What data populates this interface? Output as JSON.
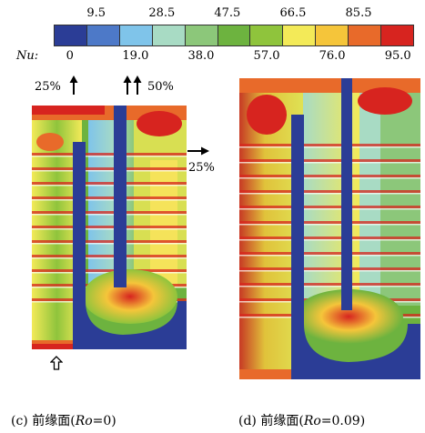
{
  "colorbar": {
    "segment_colors": [
      "#2b3d96",
      "#4d79c8",
      "#7fc4ea",
      "#a8dbc4",
      "#8cc77a",
      "#6db33f",
      "#8fc43c",
      "#f3ea58",
      "#f5c53a",
      "#e86a2a",
      "#d7241f"
    ],
    "top_ticks": [
      "9.5",
      "28.5",
      "47.5",
      "66.5",
      "85.5"
    ],
    "bottom_label": "Nu:",
    "bottom_ticks": [
      "0",
      "19.0",
      "38.0",
      "57.0",
      "76.0",
      "95.0"
    ]
  },
  "annotations": {
    "inlet_left": "25%",
    "inlet_mid": "50%",
    "outlet_right": "25%"
  },
  "captions": {
    "left_prefix": "(c) 前缘面(",
    "left_var": "Ro",
    "left_value": "=0)",
    "right_prefix": "(d) 前缘面(",
    "right_var": "Ro",
    "right_value": "=0.09)"
  }
}
